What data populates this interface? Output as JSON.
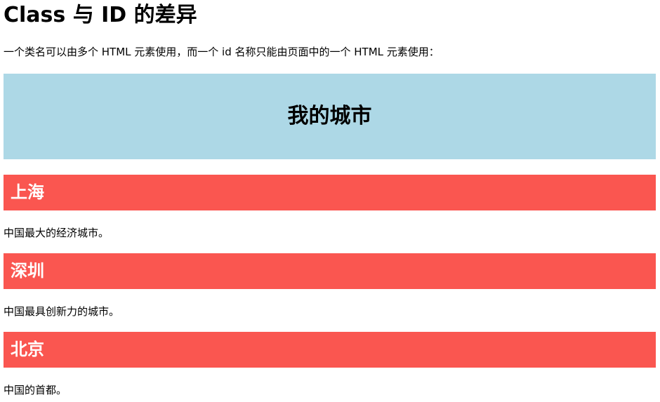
{
  "page": {
    "title": "Class 与 ID 的差异",
    "intro": "一个类名可以由多个 HTML 元素使用，而一个 id 名称只能由页面中的一个 HTML 元素使用："
  },
  "header": {
    "title": "我的城市"
  },
  "cities": [
    {
      "name": "上海",
      "description": "中国最大的经济城市。"
    },
    {
      "name": "深圳",
      "description": "中国最具创新力的城市。"
    },
    {
      "name": "北京",
      "description": "中国的首都。"
    }
  ],
  "colors": {
    "header_bg": "#add8e6",
    "city_bg": "#fa5650",
    "city_text": "#ffffff"
  }
}
